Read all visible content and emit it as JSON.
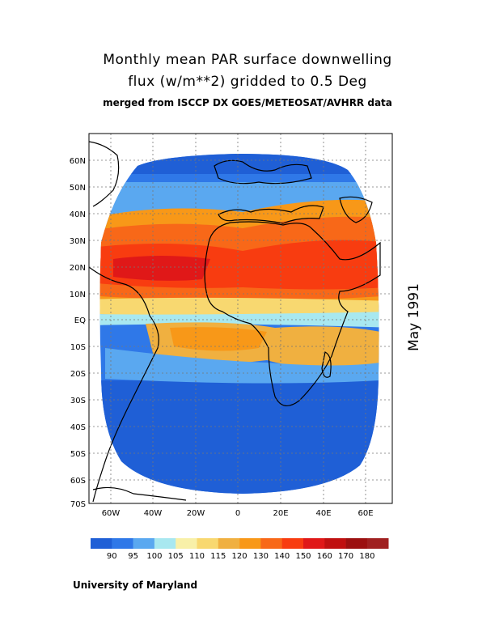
{
  "title": {
    "line1": "Monthly mean PAR surface downwelling",
    "line2": "flux (w/m**2) gridded to 0.5 Deg",
    "line3": "merged from ISCCP DX GOES/METEOSAT/AVHRR data"
  },
  "date": "May 1991",
  "credit": "University of Maryland",
  "lat_labels": [
    "60N",
    "50N",
    "40N",
    "30N",
    "20N",
    "10N",
    "EQ",
    "10S",
    "20S",
    "30S",
    "40S",
    "50S",
    "60S",
    "70S"
  ],
  "lon_labels": [
    "60W",
    "40W",
    "20W",
    "0",
    "20E",
    "40E",
    "60E"
  ],
  "legend": {
    "colors": [
      "#1f5fd6",
      "#2f78e8",
      "#5aa8f0",
      "#a8e8f0",
      "#f8f0a8",
      "#f8d870",
      "#f0b040",
      "#f89818",
      "#f86818",
      "#f83c10",
      "#e01818",
      "#c01010",
      "#9c1010",
      "#a02020"
    ],
    "labels": [
      "90",
      "95",
      "100",
      "105",
      "110",
      "115",
      "120",
      "130",
      "140",
      "150",
      "160",
      "170",
      "180"
    ]
  }
}
